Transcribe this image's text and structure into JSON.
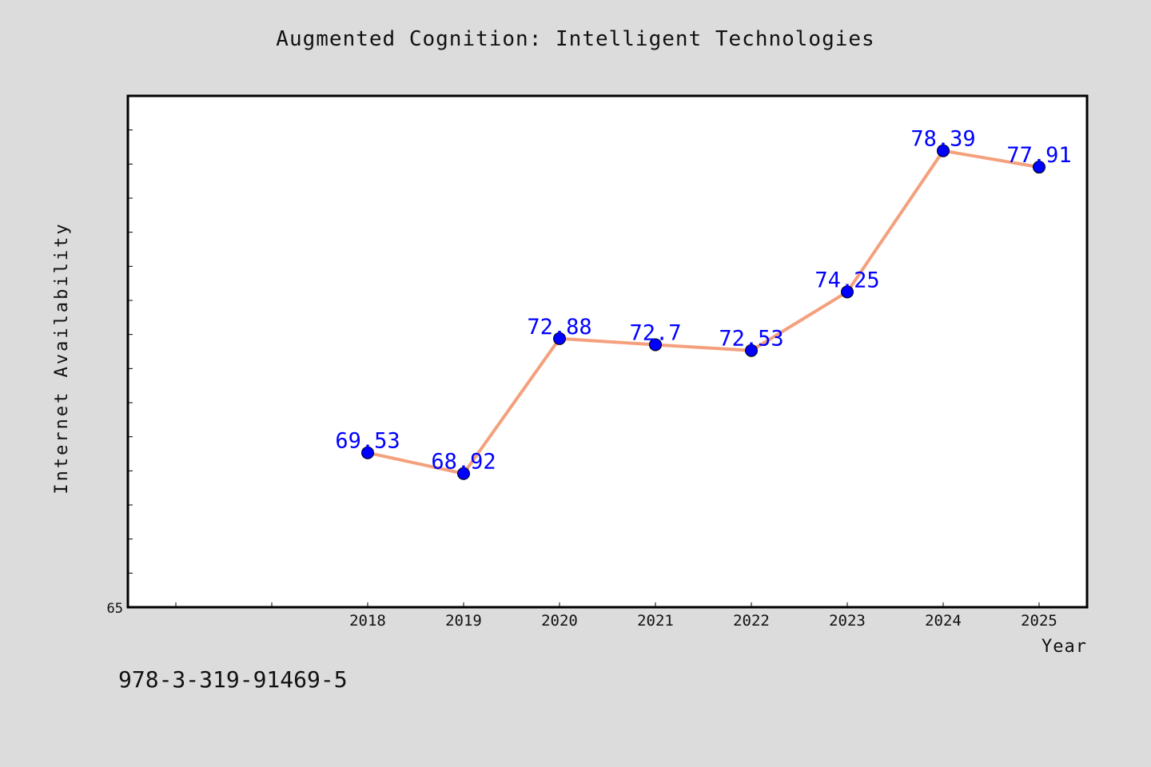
{
  "chart_data": {
    "type": "line",
    "title": "Augmented Cognition: Intelligent Technologies",
    "xlabel": "Year",
    "ylabel": "Internet Availability",
    "categories": [
      "2018",
      "2019",
      "2020",
      "2021",
      "2022",
      "2023",
      "2024",
      "2025"
    ],
    "series": [
      {
        "values": [
          69.53,
          68.92,
          72.88,
          72.7,
          72.53,
          74.25,
          78.39,
          77.91
        ],
        "data_labels": [
          "69.53",
          "68.92",
          "72.88",
          "72.7",
          "72.53",
          "74.25",
          "78.39",
          "77.91"
        ]
      }
    ],
    "y_tick_label": "65",
    "ylim": [
      65,
      80
    ],
    "grid": false,
    "legend": "none",
    "colors": {
      "line": "#f4a07c",
      "marker": "#0000ff",
      "data_label": "#0000ff",
      "background": "#dcdcdc",
      "plot_background": "#ffffff"
    }
  },
  "footer_text": "978-3-319-91469-5"
}
